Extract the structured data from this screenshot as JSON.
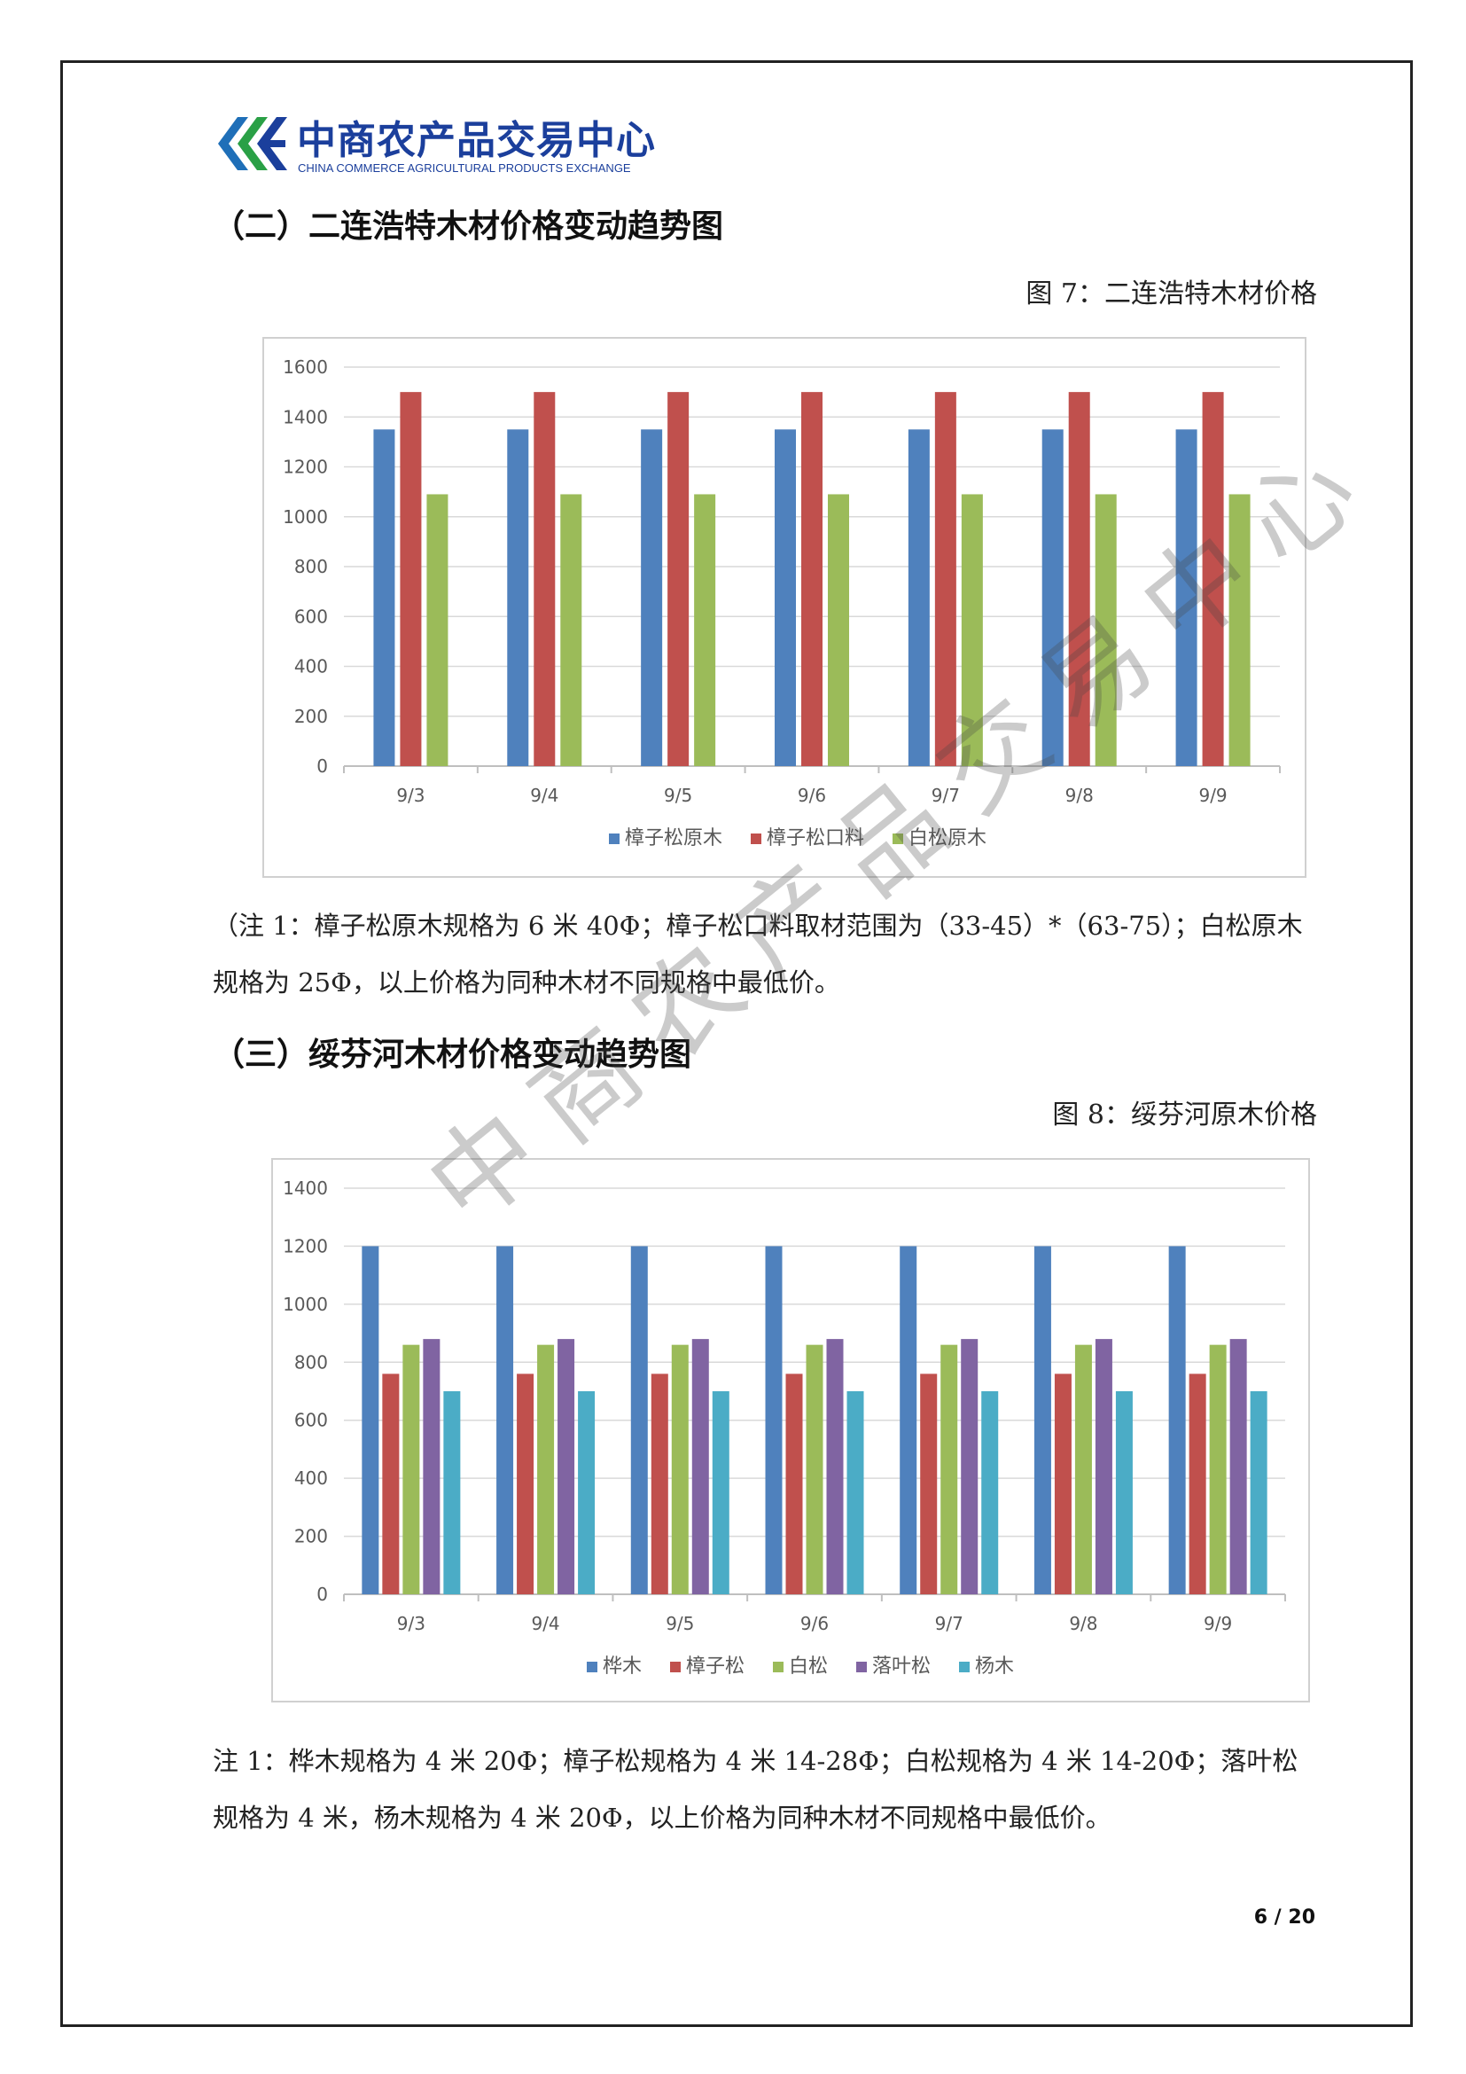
{
  "header": {
    "logo_cn": "中商农产品交易中心",
    "logo_en": "CHINA COMMERCE AGRICULTURAL PRODUCTS EXCHANGE"
  },
  "section2": {
    "heading": "（二）二连浩特木材价格变动趋势图",
    "figure_caption": "图 7：二连浩特木材价格",
    "note": "（注 1：樟子松原木规格为 6 米 40Φ；樟子松口料取材范围为（33-45）*（63-75）；白松原木规格为 25Φ，以上价格为同种木材不同规格中最低价。"
  },
  "section3": {
    "heading": "（三）绥芬河木材价格变动趋势图",
    "figure_caption": "图 8：绥芬河原木价格",
    "note": "注 1：桦木规格为 4 米 20Φ；樟子松规格为 4 米 14-28Φ；白松规格为 4 米 14-20Φ；落叶松规格为 4 米，杨木规格为 4 米 20Φ，以上价格为同种木材不同规格中最低价。"
  },
  "page_number": "6 / 20",
  "watermark": "中商农产品交易中心",
  "chart_data": [
    {
      "type": "bar",
      "categories": [
        "9/3",
        "9/4",
        "9/5",
        "9/6",
        "9/7",
        "9/8",
        "9/9"
      ],
      "series": [
        {
          "name": "樟子松原木",
          "color": "#4f81bd",
          "values": [
            1350,
            1350,
            1350,
            1350,
            1350,
            1350,
            1350
          ]
        },
        {
          "name": "樟子松口料",
          "color": "#c0504d",
          "values": [
            1500,
            1500,
            1500,
            1500,
            1500,
            1500,
            1500
          ]
        },
        {
          "name": "白松原木",
          "color": "#9bbb59",
          "values": [
            1090,
            1090,
            1090,
            1090,
            1090,
            1090,
            1090
          ]
        }
      ],
      "ylim": [
        0,
        1600
      ],
      "yticks": [
        0,
        200,
        400,
        600,
        800,
        1000,
        1200,
        1400,
        1600
      ],
      "grid": true,
      "legend": "bottom"
    },
    {
      "type": "bar",
      "categories": [
        "9/3",
        "9/4",
        "9/5",
        "9/6",
        "9/7",
        "9/8",
        "9/9"
      ],
      "series": [
        {
          "name": "桦木",
          "color": "#4f81bd",
          "values": [
            1200,
            1200,
            1200,
            1200,
            1200,
            1200,
            1200
          ]
        },
        {
          "name": "樟子松",
          "color": "#c0504d",
          "values": [
            760,
            760,
            760,
            760,
            760,
            760,
            760
          ]
        },
        {
          "name": "白松",
          "color": "#9bbb59",
          "values": [
            860,
            860,
            860,
            860,
            860,
            860,
            860
          ]
        },
        {
          "name": "落叶松",
          "color": "#8064a2",
          "values": [
            880,
            880,
            880,
            880,
            880,
            880,
            880
          ]
        },
        {
          "name": "杨木",
          "color": "#4bacc6",
          "values": [
            700,
            700,
            700,
            700,
            700,
            700,
            700
          ]
        }
      ],
      "ylim": [
        0,
        1400
      ],
      "yticks": [
        0,
        200,
        400,
        600,
        800,
        1000,
        1200,
        1400
      ],
      "grid": true,
      "legend": "bottom"
    }
  ]
}
